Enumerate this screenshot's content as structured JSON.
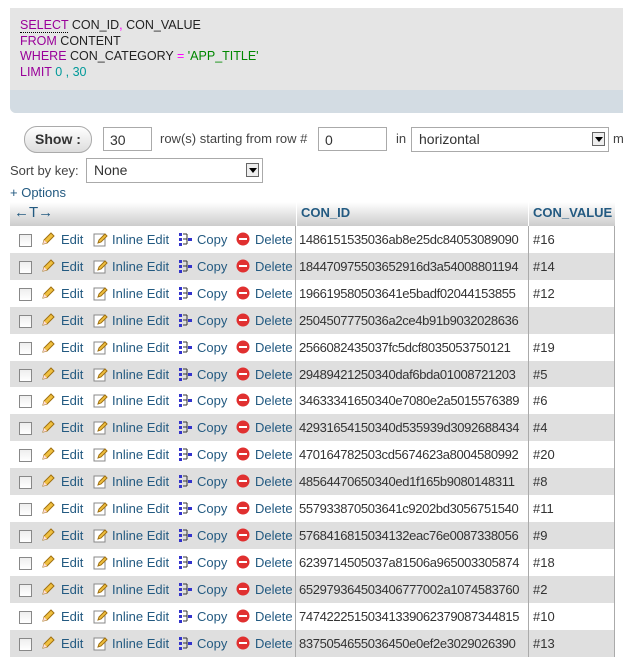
{
  "sql": {
    "select_kw": "SELECT",
    "select_cols": "CON_ID",
    "comma": ",",
    "select_col2": "CON_VALUE",
    "from_kw": "FROM",
    "table": "CONTENT",
    "where_kw": "WHERE",
    "where_col": "CON_CATEGORY",
    "eq": "=",
    "where_val": "'APP_TITLE'",
    "limit_kw": "LIMIT",
    "limit_val": "0 , 30"
  },
  "nav": {
    "show_label": "Show :",
    "rows_value": "30",
    "rows_text": "row(s) starting from row #",
    "start_value": "0",
    "in_text": "in",
    "mode_value": "horizontal",
    "mode_trail": "m",
    "sort_label": "Sort by key:",
    "sort_value": "None",
    "options_link": "+ Options"
  },
  "table": {
    "arrows_header": "←T→",
    "columns": [
      "CON_ID",
      "CON_VALUE"
    ],
    "actions": {
      "edit": "Edit",
      "inline_edit": "Inline Edit",
      "copy": "Copy",
      "delete": "Delete"
    },
    "rows": [
      [
        "1486151535036ab8e25dc84053089090",
        "#16"
      ],
      [
        "184470975503652916d3a54008801194",
        "#14"
      ],
      [
        "196619580503641e5badf02044153855",
        "#12"
      ],
      [
        "2504507775036a2ce4b91b9032028636",
        ""
      ],
      [
        "2566082435037fc5dcf8035053750121",
        "#19"
      ],
      [
        "29489421250340daf6bda01008721203",
        "#5"
      ],
      [
        "34633341650340e7080e2a5015576389",
        "#6"
      ],
      [
        "42931654150340d535939d3092688434",
        "#4"
      ],
      [
        "470164782503cd5674623a8004580992",
        "#20"
      ],
      [
        "48564470650340ed1f165b9080148311",
        "#8"
      ],
      [
        "557933870503641c9202bd3056751540",
        "#11"
      ],
      [
        "5768416815034132eac76e0087338056",
        "#9"
      ],
      [
        "6239714505037a81506a965003305874",
        "#18"
      ],
      [
        "652979364503406777002a1074583760",
        "#2"
      ],
      [
        "74742225150341339062379087344815",
        "#10"
      ],
      [
        "8375054655036450e0ef2e3029026390",
        "#13"
      ]
    ]
  }
}
